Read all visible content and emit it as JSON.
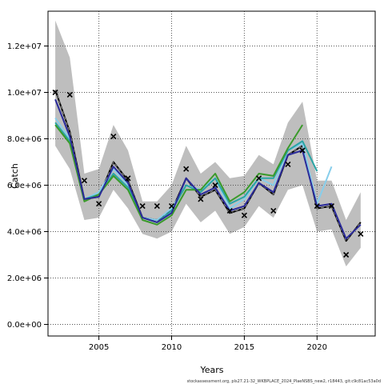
{
  "chart_data": {
    "type": "line",
    "title": "",
    "xlabel": "Years",
    "ylabel": "Catch",
    "footnote": "stockassessment.org, pls27.21-32_WKBPLACE_2024_PlaeNSBS_new2, r18443, git:c9c81ac53a0d",
    "xlim": [
      2001.5,
      2024.0
    ],
    "ylim": [
      -500000,
      13500000
    ],
    "x_ticks": [
      2005,
      2010,
      2015,
      2020
    ],
    "x_tick_labels": [
      "2005",
      "2010",
      "2015",
      "2020"
    ],
    "y_ticks": [
      0,
      2000000,
      4000000,
      6000000,
      8000000,
      10000000,
      12000000
    ],
    "y_tick_labels": [
      "0.0e+00",
      "2.0e+06",
      "4.0e+06",
      "6.0e+06",
      "8.0e+06",
      "1.0e+07",
      "1.2e+07"
    ],
    "grid": true,
    "confidence_band": {
      "x": [
        2002,
        2003,
        2004,
        2005,
        2006,
        2007,
        2008,
        2009,
        2010,
        2011,
        2012,
        2013,
        2014,
        2015,
        2016,
        2017,
        2018,
        2019,
        2020,
        2021,
        2022,
        2023
      ],
      "upper": [
        13100000,
        11500000,
        6500000,
        6700000,
        8600000,
        7500000,
        5300000,
        5300000,
        6000000,
        7700000,
        6500000,
        7000000,
        6300000,
        6400000,
        7300000,
        6900000,
        8700000,
        9600000,
        6200000,
        6200000,
        4500000,
        5700000
      ],
      "lower": [
        7700000,
        6700000,
        4500000,
        4600000,
        5800000,
        5000000,
        3900000,
        3700000,
        4000000,
        5200000,
        4400000,
        4900000,
        3900000,
        4200000,
        5100000,
        4600000,
        5800000,
        6000000,
        4000000,
        4100000,
        2500000,
        3300000
      ]
    },
    "series": [
      {
        "x": [
          2002,
          2003,
          2004,
          2005,
          2006,
          2007,
          2008,
          2009,
          2010,
          2011,
          2012,
          2013,
          2014,
          2015,
          2016,
          2017,
          2018,
          2019,
          2020,
          2021,
          2022,
          2023
        ],
        "values": [
          10100000,
          8300000,
          5400000,
          5500000,
          7000000,
          6200000,
          4600000,
          4500000,
          4900000,
          6300000,
          5500000,
          5800000,
          4800000,
          5000000,
          6100000,
          5600000,
          7300000,
          7700000,
          5000000,
          5100000,
          3600000,
          4400000
        ],
        "color": "#000000",
        "width": 2.0,
        "dash": ""
      },
      {
        "x": [
          2002,
          2003,
          2004,
          2005,
          2006,
          2007,
          2008,
          2009,
          2010,
          2011,
          2012,
          2013,
          2014,
          2015,
          2016,
          2017,
          2018,
          2019,
          2020,
          2021,
          2022,
          2023
        ],
        "values": [
          10100000,
          8300000,
          5400000,
          5500000,
          7000000,
          6200000,
          4600000,
          4500000,
          4900000,
          6300000,
          5500000,
          5800000,
          4800000,
          5000000,
          6100000,
          5600000,
          7300000,
          7700000,
          5000000,
          5100000,
          3600000,
          4400000
        ],
        "color": "#888888",
        "width": 1.0,
        "dash": "4,3"
      },
      {
        "x": [
          2002,
          2003,
          2004,
          2005,
          2006,
          2007,
          2008,
          2009,
          2010,
          2011,
          2012,
          2013,
          2014,
          2015,
          2016,
          2017,
          2018,
          2019,
          2020,
          2021
        ],
        "values": [
          8900000,
          8000000,
          5400000,
          5700000,
          6700000,
          6000000,
          4600000,
          4500000,
          5000000,
          6000000,
          5800000,
          6300000,
          5000000,
          5400000,
          6300000,
          6000000,
          7500000,
          7800000,
          5200000,
          6800000
        ],
        "color": "#87ceeb",
        "width": 2.0,
        "dash": ""
      },
      {
        "x": [
          2002,
          2003,
          2004,
          2005,
          2006,
          2007,
          2008,
          2009,
          2010,
          2011,
          2012,
          2013,
          2014,
          2015,
          2016,
          2017,
          2018,
          2019,
          2020
        ],
        "values": [
          8700000,
          7900000,
          5400000,
          5600000,
          6500000,
          5900000,
          4600000,
          4400000,
          4900000,
          6000000,
          5700000,
          6300000,
          5200000,
          5500000,
          6300000,
          6300000,
          7500000,
          7900000,
          6600000
        ],
        "color": "#2aa5a5",
        "width": 2.0,
        "dash": ""
      },
      {
        "x": [
          2002,
          2003,
          2004,
          2005,
          2006,
          2007,
          2008,
          2009,
          2010,
          2011,
          2012,
          2013,
          2014,
          2015,
          2016,
          2017,
          2018,
          2019
        ],
        "values": [
          8600000,
          7800000,
          5300000,
          5600000,
          6400000,
          5800000,
          4500000,
          4300000,
          4700000,
          5800000,
          5800000,
          6500000,
          5300000,
          5700000,
          6500000,
          6400000,
          7600000,
          8600000
        ],
        "color": "#3a9a2a",
        "width": 2.0,
        "dash": ""
      },
      {
        "x": [
          2002,
          2003,
          2004,
          2005,
          2006,
          2007,
          2008,
          2009,
          2010,
          2011,
          2012,
          2013,
          2014,
          2015,
          2016,
          2017,
          2018,
          2019,
          2020,
          2021,
          2022,
          2023
        ],
        "values": [
          9700000,
          8100000,
          5400000,
          5500000,
          6800000,
          6100000,
          4600000,
          4400000,
          4800000,
          6300000,
          5600000,
          5900000,
          4900000,
          5100000,
          6100000,
          5700000,
          7300000,
          7500000,
          5100000,
          5200000,
          3700000,
          4300000
        ],
        "color": "#2a2a9a",
        "width": 2.0,
        "dash": ""
      }
    ],
    "observed": {
      "x": [
        2002,
        2003,
        2004,
        2005,
        2006,
        2007,
        2008,
        2009,
        2010,
        2011,
        2012,
        2013,
        2014,
        2015,
        2016,
        2017,
        2018,
        2019,
        2020,
        2021,
        2022,
        2023
      ],
      "values": [
        10000000,
        9900000,
        6200000,
        5200000,
        8100000,
        6300000,
        5100000,
        5100000,
        5100000,
        6700000,
        5400000,
        6000000,
        4900000,
        4700000,
        6300000,
        4900000,
        6900000,
        7500000,
        5100000,
        5100000,
        3000000,
        3900000
      ],
      "marker": "x",
      "color": "#000000"
    },
    "colors": {
      "band": "#bebebe",
      "grid": "#555555",
      "axis": "#000000"
    }
  }
}
